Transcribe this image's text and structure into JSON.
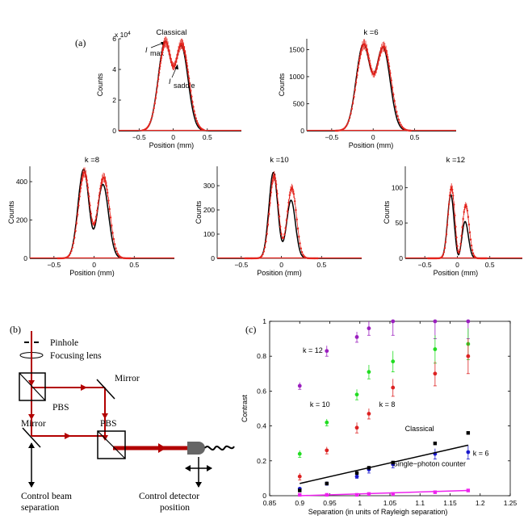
{
  "panel_labels": {
    "a": "(a)",
    "b": "(b)",
    "c": "(c)"
  },
  "panel_a": {
    "xlabel": "Position (mm)",
    "ylabel": "Counts",
    "exponent_label": "x 10",
    "exponent_power": "4",
    "annotations": {
      "imax": "I",
      "imax_sub": "max",
      "isaddle": "I",
      "isaddle_sub": "saddle"
    },
    "colors": {
      "theory": "#000000",
      "data": "#e3231c"
    }
  },
  "panel_b": {
    "labels": {
      "pinhole": "Pinhole",
      "focusing_lens": "Focusing lens",
      "pbs_top": "PBS",
      "pbs_bottom": "PBS",
      "mirror_top": "Mirror",
      "mirror_left": "Mirror",
      "control_beam_1": "Control beam",
      "control_beam_2": "separation",
      "control_detector_1": "Control detector",
      "control_detector_2": "position"
    },
    "colors": {
      "beam": "#b20000",
      "detector": "#666666"
    }
  },
  "chart_data": [
    {
      "type": "line",
      "title": "Classical",
      "xlabel": "Position (mm)",
      "ylabel": "Counts",
      "xlim": [
        -0.8,
        1.0
      ],
      "ylim": [
        0,
        60000
      ],
      "xticks": [
        -0.5,
        0,
        0.5
      ],
      "xtick_labels": [
        "−0.5",
        "0",
        "0.5"
      ],
      "yticks": [
        0,
        20000,
        40000,
        60000
      ],
      "ytick_labels": [
        "0",
        "2",
        "4",
        "6"
      ],
      "peaks": {
        "left": {
          "x": -0.12,
          "y": 57000
        },
        "right": {
          "x": 0.12,
          "y": 54000
        },
        "saddle": {
          "x": 0.0,
          "y": 42000
        }
      },
      "series": [
        {
          "name": "theory",
          "width": 0.1
        },
        {
          "name": "data"
        }
      ]
    },
    {
      "type": "line",
      "title": "k =6",
      "xlabel": "Position (mm)",
      "ylabel": "Counts",
      "xlim": [
        -0.8,
        1.0
      ],
      "ylim": [
        0,
        1700
      ],
      "xticks": [
        -0.5,
        0,
        0.5
      ],
      "xtick_labels": [
        "−0.5",
        "0",
        "0.5"
      ],
      "yticks": [
        0,
        500,
        1000,
        1500
      ],
      "ytick_labels": [
        "0",
        "500",
        "1000",
        "1500"
      ],
      "peaks": {
        "left": {
          "x": -0.12,
          "y": 1580
        },
        "right": {
          "x": 0.12,
          "y": 1520
        },
        "saddle": {
          "x": 0.0,
          "y": 1050
        }
      },
      "series": [
        {
          "name": "theory",
          "width": 0.085
        },
        {
          "name": "data"
        }
      ]
    },
    {
      "type": "line",
      "title": "k =8",
      "xlabel": "Position (mm)",
      "ylabel": "Counts",
      "xlim": [
        -0.8,
        1.0
      ],
      "ylim": [
        0,
        480
      ],
      "xticks": [
        -0.5,
        0,
        0.5
      ],
      "xtick_labels": [
        "−0.5",
        "0",
        "0.5"
      ],
      "yticks": [
        0,
        200,
        400
      ],
      "ytick_labels": [
        "0",
        "200",
        "400"
      ],
      "peaks": {
        "left": {
          "x": -0.13,
          "y": 465
        },
        "right": {
          "x": 0.11,
          "y": 385
        },
        "saddle": {
          "x": -0.02,
          "y": 160
        }
      },
      "data_peaks": {
        "left": 450,
        "right": 420,
        "saddle": 190
      },
      "series": [
        {
          "name": "theory",
          "width": 0.07
        },
        {
          "name": "data"
        }
      ]
    },
    {
      "type": "line",
      "title": "k =10",
      "xlabel": "Position (mm)",
      "ylabel": "Counts",
      "xlim": [
        -0.8,
        1.0
      ],
      "ylim": [
        0,
        380
      ],
      "xticks": [
        -0.5,
        0,
        0.5
      ],
      "xtick_labels": [
        "−0.5",
        "0",
        "0.5"
      ],
      "yticks": [
        0,
        100,
        200,
        300
      ],
      "ytick_labels": [
        "0",
        "100",
        "200",
        "300"
      ],
      "peaks": {
        "left": {
          "x": -0.1,
          "y": 355
        },
        "right": {
          "x": 0.12,
          "y": 240
        },
        "saddle": {
          "x": 0.0,
          "y": 80
        }
      },
      "data_peaks": {
        "left": 340,
        "right": 290,
        "saddle": 100
      },
      "series": [
        {
          "name": "theory",
          "width": 0.055
        },
        {
          "name": "data"
        }
      ]
    },
    {
      "type": "line",
      "title": "k =12",
      "xlabel": "Position (mm)",
      "ylabel": "Counts",
      "xlim": [
        -0.8,
        1.0
      ],
      "ylim": [
        0,
        130
      ],
      "xticks": [
        -0.5,
        0,
        0.5
      ],
      "xtick_labels": [
        "−0.5",
        "0",
        "0.5"
      ],
      "yticks": [
        0,
        50,
        100
      ],
      "ytick_labels": [
        "0",
        "50",
        "100"
      ],
      "peaks": {
        "left": {
          "x": -0.1,
          "y": 90
        },
        "right": {
          "x": 0.12,
          "y": 52
        },
        "saddle": {
          "x": 0.02,
          "y": 5
        }
      },
      "data_peaks": {
        "left": 100,
        "right": 75,
        "saddle": 8
      },
      "series": [
        {
          "name": "theory",
          "width": 0.05
        },
        {
          "name": "data"
        }
      ]
    },
    {
      "type": "scatter",
      "title": "",
      "xlabel": "Separation (in units of Rayleigh separation)",
      "ylabel": "Contrast",
      "xlim": [
        0.85,
        1.25
      ],
      "ylim": [
        0,
        1
      ],
      "xticks": [
        0.85,
        0.9,
        0.95,
        1,
        1.05,
        1.1,
        1.15,
        1.2,
        1.25
      ],
      "xtick_labels": [
        "0.85",
        "0.9",
        "0.95",
        "1",
        "1.05",
        "1.1",
        "1.15",
        "1.2",
        "1.25"
      ],
      "yticks": [
        0,
        0.2,
        0.4,
        0.6,
        0.8,
        1
      ],
      "ytick_labels": [
        "0",
        "0.2",
        "0.4",
        "0.6",
        "0.8",
        "1"
      ],
      "series": [
        {
          "name": "k = 12",
          "color": "#9b1fbf",
          "label_at": [
            0.905,
            0.82
          ],
          "x": [
            0.9,
            0.945,
            0.995,
            1.015,
            1.055,
            1.125,
            1.18
          ],
          "y": [
            0.63,
            0.83,
            0.91,
            0.96,
            1.0,
            1.0,
            1.0
          ],
          "err": [
            0.02,
            0.03,
            0.03,
            0.04,
            0.08,
            0.1,
            0.1
          ]
        },
        {
          "name": "k = 10",
          "color": "#22dd22",
          "label_at": [
            0.917,
            0.51
          ],
          "x": [
            0.9,
            0.945,
            0.995,
            1.015,
            1.055,
            1.125,
            1.18
          ],
          "y": [
            0.24,
            0.42,
            0.58,
            0.71,
            0.77,
            0.84,
            0.87
          ],
          "err": [
            0.02,
            0.02,
            0.03,
            0.04,
            0.06,
            0.08,
            0.09
          ]
        },
        {
          "name": "k = 8",
          "color": "#dd2222",
          "label_at": [
            1.032,
            0.51
          ],
          "x": [
            0.9,
            0.945,
            0.995,
            1.015,
            1.055,
            1.125,
            1.18
          ],
          "y": [
            0.11,
            0.26,
            0.39,
            0.47,
            0.62,
            0.7,
            0.8
          ],
          "err": [
            0.02,
            0.02,
            0.03,
            0.03,
            0.05,
            0.07,
            0.1
          ]
        },
        {
          "name": "k = 6",
          "color": "#1a1acc",
          "label_at": [
            1.188,
            0.23
          ],
          "x": [
            0.9,
            0.945,
            0.995,
            1.015,
            1.055,
            1.125,
            1.18
          ],
          "y": [
            0.04,
            0.07,
            0.11,
            0.15,
            0.18,
            0.24,
            0.25
          ],
          "err": [
            0.01,
            0.01,
            0.01,
            0.02,
            0.02,
            0.03,
            0.04
          ]
        },
        {
          "name": "Classical",
          "color": "#000000",
          "label_at": [
            1.075,
            0.37
          ],
          "x": [
            0.9,
            0.945,
            0.995,
            1.015,
            1.055,
            1.125,
            1.18
          ],
          "y": [
            0.03,
            0.07,
            0.13,
            0.16,
            0.19,
            0.3,
            0.36
          ],
          "fit": [
            [
              0.9,
              0.07
            ],
            [
              1.18,
              0.29
            ]
          ]
        },
        {
          "name": "Single−photon counter",
          "color": "#ee22ee",
          "label_at": [
            1.055,
            0.17
          ],
          "x": [
            0.9,
            0.945,
            0.995,
            1.015,
            1.055,
            1.125,
            1.18
          ],
          "y": [
            0.005,
            0.005,
            0.005,
            0.01,
            0.01,
            0.02,
            0.03
          ],
          "fit": [
            [
              0.9,
              0.0
            ],
            [
              1.18,
              0.03
            ]
          ]
        }
      ]
    }
  ]
}
